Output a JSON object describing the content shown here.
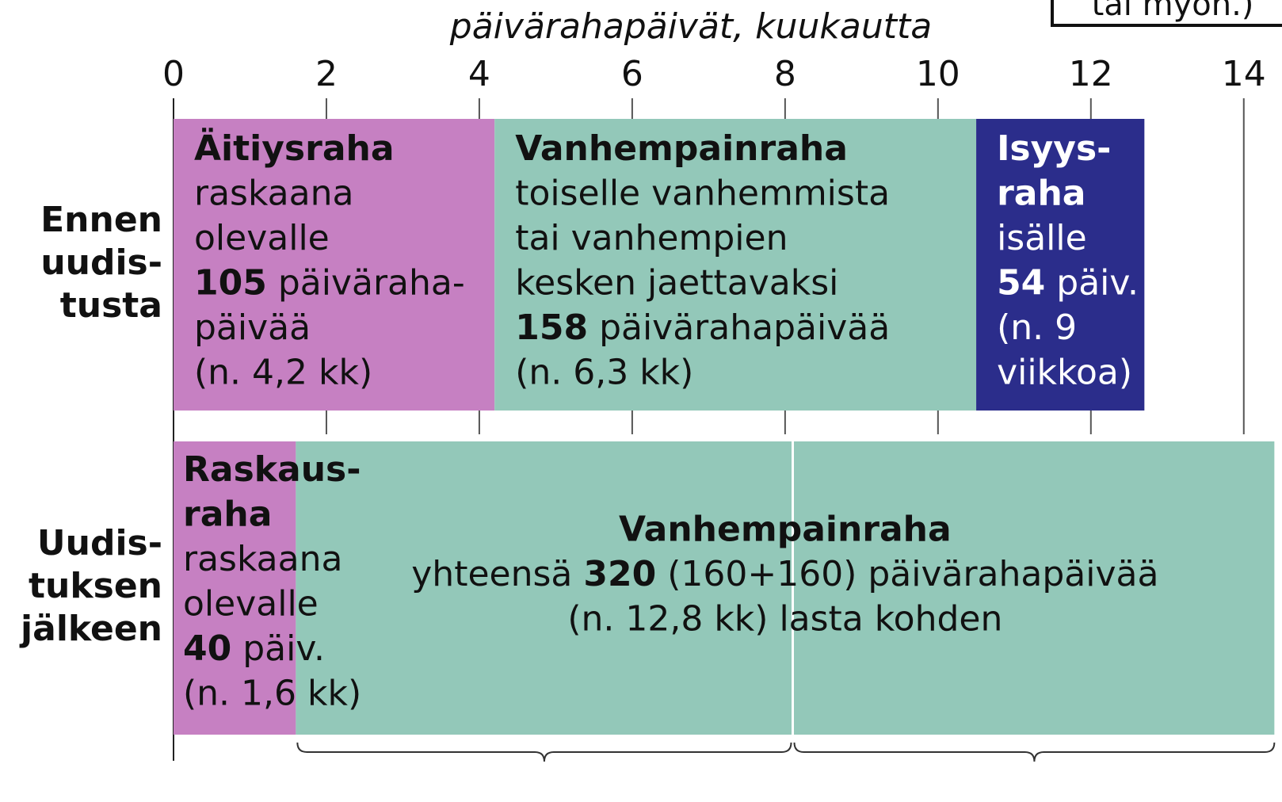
{
  "chart_data": {
    "type": "stacked_bar",
    "orientation": "horizontal",
    "x_label": "päivärahapäivät, kuukautta",
    "note": "tai myöh.)",
    "xlim": [
      0,
      14.5
    ],
    "xticks": [
      0,
      2,
      4,
      6,
      8,
      10,
      12,
      14
    ],
    "grid": true,
    "rows": [
      {
        "category": [
          "Ennen",
          "uudis-",
          "tusta"
        ],
        "segments": [
          {
            "value": 4.2,
            "color": "#c680c2",
            "text": [
              [
                {
                  "text": "Äitiysraha",
                  "bold": true
                }
              ],
              [
                "raskaana"
              ],
              [
                "olevalle"
              ],
              [
                {
                  "text": "105",
                  "bold": true
                },
                " päiväraha-"
              ],
              [
                "päivää"
              ],
              [
                "(n. 4,2 kk)"
              ]
            ]
          },
          {
            "value": 6.3,
            "color": "#93c8b9",
            "text": [
              [
                {
                  "text": "Vanhempainraha",
                  "bold": true
                }
              ],
              [
                "toiselle vanhemmista"
              ],
              [
                "tai vanhempien"
              ],
              [
                "kesken jaettavaksi"
              ],
              [
                {
                  "text": "158",
                  "bold": true
                },
                " päivärahapäivää"
              ],
              [
                "(n. 6,3 kk)"
              ]
            ]
          },
          {
            "value": 2.2,
            "color": "#2b2d8b",
            "text_color": "#ffffff",
            "text": [
              [
                {
                  "text": "Isyys-",
                  "bold": true
                }
              ],
              [
                {
                  "text": "raha",
                  "bold": true
                }
              ],
              [
                "isälle"
              ],
              [
                {
                  "text": "54",
                  "bold": true
                },
                " päiv."
              ],
              [
                "(n. 9"
              ],
              [
                "viikkoa)"
              ]
            ]
          }
        ]
      },
      {
        "category": [
          "Uudis-",
          "tuksen",
          "jälkeen"
        ],
        "segments": [
          {
            "value": 1.6,
            "color": "#c680c2",
            "text": [
              [
                {
                  "text": "Raskaus-",
                  "bold": true
                }
              ],
              [
                {
                  "text": "raha",
                  "bold": true
                }
              ],
              [
                "raskaana"
              ],
              [
                "olevalle"
              ],
              [
                {
                  "text": "40",
                  "bold": true
                },
                " päiv."
              ],
              [
                "(n. 1,6 kk)"
              ]
            ]
          },
          {
            "value": 12.8,
            "color": "#93c8b9",
            "align": "center",
            "divider": 8.1,
            "text": [
              [
                {
                  "text": "Vanhempainraha",
                  "bold": true
                }
              ],
              [
                "yhteensä ",
                {
                  "text": "320",
                  "bold": true
                },
                " (160+160) päivärahapäivää"
              ],
              [
                "(n. 12,8 kk) lasta kohden"
              ]
            ]
          }
        ]
      }
    ]
  }
}
